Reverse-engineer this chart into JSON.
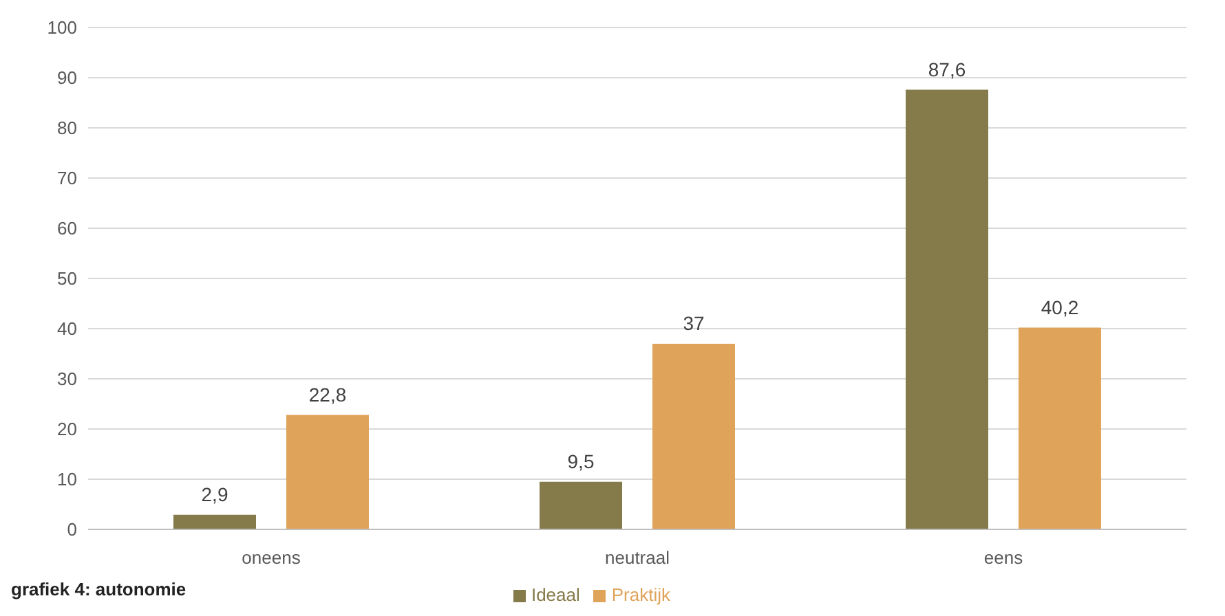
{
  "chart_data": {
    "type": "bar",
    "categories": [
      "oneens",
      "neutraal",
      "eens"
    ],
    "series": [
      {
        "name": "Ideaal",
        "color": "#857a4a",
        "values": [
          2.9,
          9.5,
          87.6
        ],
        "value_labels": [
          "2,9",
          "9,5",
          "87,6"
        ]
      },
      {
        "name": "Praktijk",
        "color": "#e0a35a",
        "values": [
          22.8,
          37,
          40.2
        ],
        "value_labels": [
          "22,8",
          "37",
          "40,2"
        ]
      }
    ],
    "ylim": [
      0,
      100
    ],
    "yticks": [
      0,
      10,
      20,
      30,
      40,
      50,
      60,
      70,
      80,
      90,
      100
    ],
    "grid": "y",
    "legend": "bottom",
    "annotations": [
      "grafiek 4: autonomie"
    ]
  }
}
